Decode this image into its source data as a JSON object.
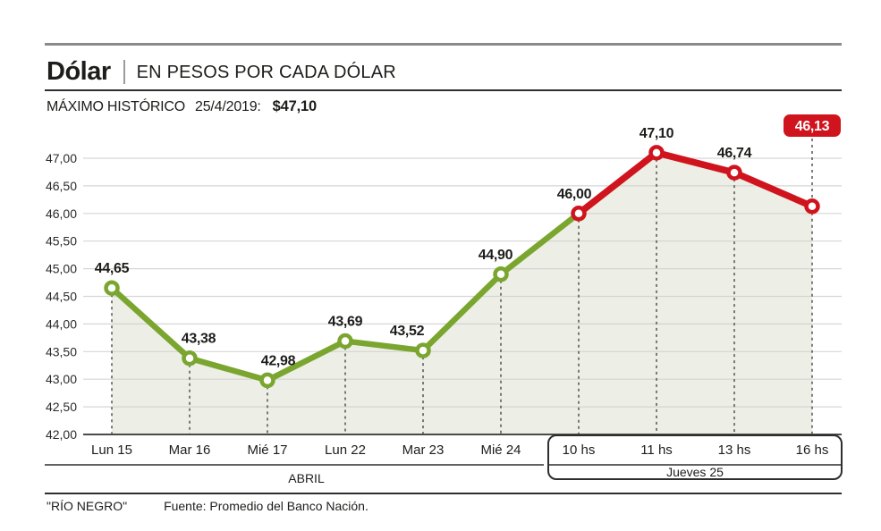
{
  "header": {
    "title": "Dólar",
    "subtitle": "EN PESOS POR CADA DÓLAR",
    "record_label": "MÁXIMO HISTÓRICO",
    "record_date": "25/4/2019:",
    "record_value": "$47,10"
  },
  "footer": {
    "brand": "\"RÍO NEGRO\"",
    "source": "Fuente: Promedio del Banco Nación."
  },
  "colors": {
    "green": "#7aa62f",
    "red": "#d0141e",
    "area": "#edeee5",
    "grid": "#d2d2d2",
    "axis": "#4a4a4a",
    "dropline": "#3a3a3a",
    "text": "#1d1d1b",
    "badge_text": "#ffffff",
    "rule_gray": "#8a8a8a",
    "rule_dark": "#2e2e2e"
  },
  "chart_data": {
    "type": "line",
    "title": "Dólar",
    "subtitle": "EN PESOS POR CADA DÓLAR",
    "x_categories": [
      "Lun 15",
      "Mar 16",
      "Mié 17",
      "Lun 22",
      "Mar 23",
      "Mié 24",
      "10 hs",
      "11 hs",
      "13 hs",
      "16 hs"
    ],
    "values": [
      44.65,
      43.38,
      42.98,
      43.69,
      43.52,
      44.9,
      46.0,
      47.1,
      46.74,
      46.13
    ],
    "value_labels": [
      "44,65",
      "43,38",
      "42,98",
      "43,69",
      "43,52",
      "44,90",
      "46,00",
      "47,10",
      "46,74",
      "46,13"
    ],
    "label_dx": [
      0,
      10,
      12,
      0,
      -18,
      -6,
      -5,
      0,
      0,
      0
    ],
    "point_colors": [
      "green",
      "green",
      "green",
      "green",
      "green",
      "green",
      "red",
      "red",
      "red",
      "red"
    ],
    "ylim": [
      42,
      47
    ],
    "yticks": [
      {
        "value": 42.0,
        "label": "42,00"
      },
      {
        "value": 42.5,
        "label": "42,50"
      },
      {
        "value": 43.0,
        "label": "43,00"
      },
      {
        "value": 43.5,
        "label": "43,50"
      },
      {
        "value": 44.0,
        "label": "44,00"
      },
      {
        "value": 44.5,
        "label": "44,50"
      },
      {
        "value": 45.0,
        "label": "45,00"
      },
      {
        "value": 45.5,
        "label": "45,50"
      },
      {
        "value": 46.0,
        "label": "46,00"
      },
      {
        "value": 46.5,
        "label": "46,50"
      },
      {
        "value": 47.0,
        "label": "47,00"
      }
    ],
    "grid": true,
    "area_fill": true,
    "legend": "none",
    "groups": [
      {
        "label": "ABRIL",
        "start": 0,
        "end": 5,
        "style": "underline"
      },
      {
        "label": "Jueves 25",
        "start": 6,
        "end": 9,
        "style": "box"
      }
    ],
    "badge": {
      "label": "46,13",
      "point_index": 9
    }
  }
}
